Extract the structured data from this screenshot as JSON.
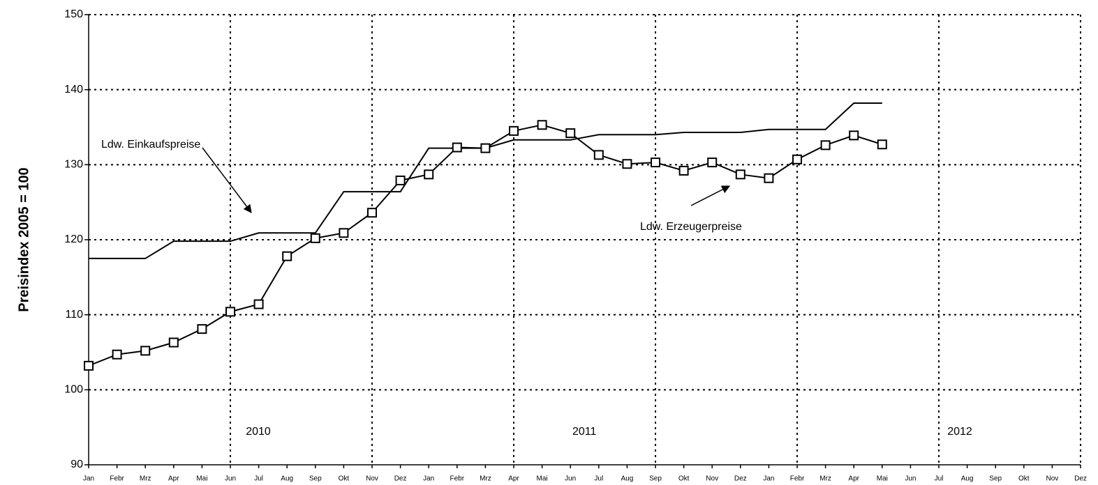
{
  "chart_data": {
    "type": "line",
    "y_label": "Preisindex   2005 = 100",
    "categories": [
      "Jan",
      "Febr",
      "Mrz",
      "Apr",
      "Mai",
      "Jun",
      "Jul",
      "Aug",
      "Sep",
      "Okt",
      "Nov",
      "Dez",
      "Jan",
      "Febr",
      "Mrz",
      "Apr",
      "Mai",
      "Jun",
      "Jul",
      "Aug",
      "Sep",
      "Okt",
      "Nov",
      "Dez",
      "Jan",
      "Febr",
      "Mrz",
      "Apr",
      "Mai",
      "Jun",
      "Jul",
      "Aug",
      "Sep",
      "Okt",
      "Nov",
      "Dez"
    ],
    "series": [
      {
        "name": "Ldw. Einkaufspreise",
        "color": "#000000",
        "marker": "none",
        "values": [
          117.5,
          117.5,
          117.5,
          119.8,
          119.8,
          119.8,
          120.9,
          120.9,
          120.9,
          126.4,
          126.4,
          126.4,
          132.2,
          132.2,
          132.2,
          133.3,
          133.3,
          133.3,
          134.0,
          134.0,
          134.0,
          134.3,
          134.3,
          134.3,
          134.7,
          134.7,
          134.7,
          138.2,
          138.2,
          null,
          null,
          null,
          null,
          null,
          null,
          null
        ]
      },
      {
        "name": "Ldw. Erzeugerpreise",
        "color": "#000000",
        "marker": "square",
        "values": [
          103.2,
          104.7,
          105.2,
          106.3,
          108.1,
          110.4,
          111.4,
          117.8,
          120.2,
          120.9,
          123.6,
          127.9,
          128.7,
          132.3,
          132.2,
          134.5,
          135.3,
          134.2,
          131.3,
          130.1,
          130.3,
          129.2,
          130.3,
          128.7,
          128.2,
          130.7,
          132.6,
          133.9,
          132.7,
          null,
          null,
          null,
          null,
          null,
          null,
          null
        ]
      }
    ],
    "year_labels": [
      "2010",
      "2011",
      "2012"
    ],
    "ylim": [
      90,
      150
    ],
    "yticks": [
      90,
      100,
      110,
      120,
      130,
      140,
      150
    ],
    "grid": true,
    "xgrid_at": [
      5,
      10,
      15,
      20,
      25,
      30,
      35
    ]
  }
}
